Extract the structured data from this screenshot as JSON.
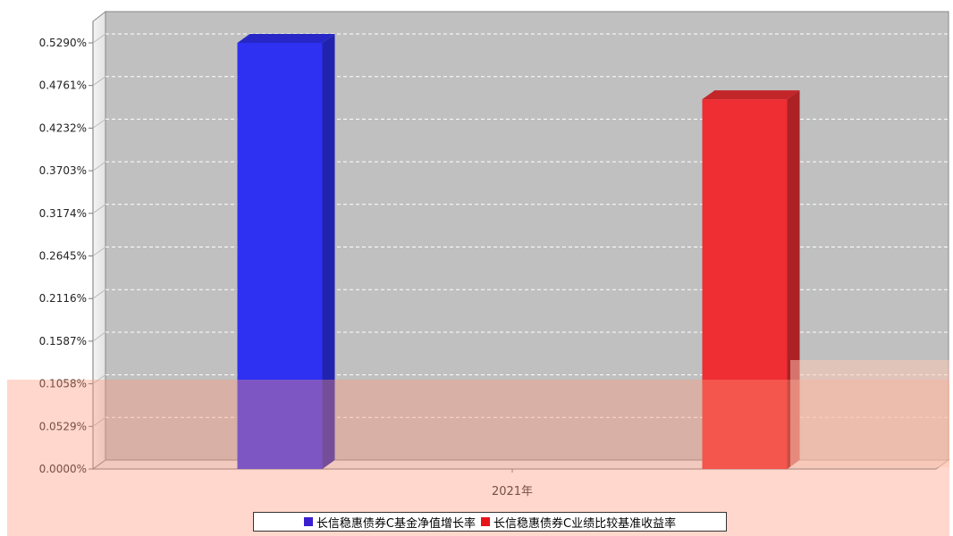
{
  "chart_data": {
    "type": "bar",
    "categories": [
      "2021年"
    ],
    "series": [
      {
        "name": "长信稳惠债券C基金净值增长率",
        "values": [
          0.529
        ],
        "color": "#2e30f2"
      },
      {
        "name": "长信稳惠债券C业绩比较基准收益率",
        "values": [
          0.459
        ],
        "color": "#ee2e32"
      }
    ],
    "y_ticks": [
      "0.0000%",
      "0.0529%",
      "0.1058%",
      "0.1587%",
      "0.2116%",
      "0.2645%",
      "0.3174%",
      "0.3703%",
      "0.4232%",
      "0.4761%",
      "0.5290%"
    ],
    "ylim": [
      0,
      0.529
    ],
    "grid": true,
    "legend_position": "bottom",
    "plot_background": "#c0c0c0"
  }
}
